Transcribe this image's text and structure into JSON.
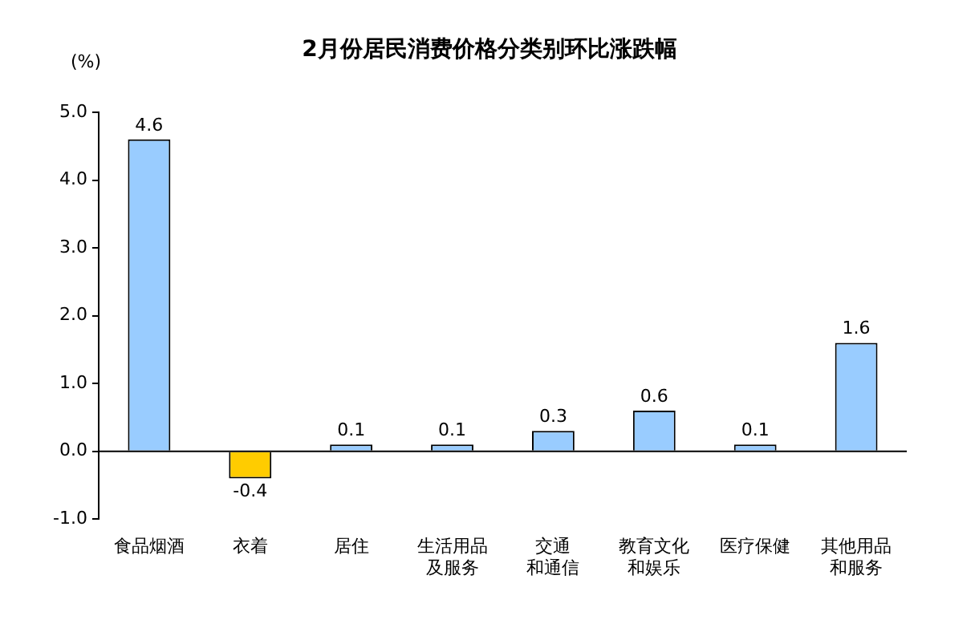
{
  "chart_data": {
    "type": "bar",
    "title": "2月份居民消费价格分类别环比涨跌幅",
    "ylabel": "(%)",
    "categories": [
      "食品烟酒",
      "衣着",
      "居住",
      "生活用品及服务",
      "交通和通信",
      "教育文化和娱乐",
      "医疗保健",
      "其他用品和服务"
    ],
    "values": [
      4.6,
      -0.4,
      0.1,
      0.1,
      0.3,
      0.6,
      0.1,
      1.6
    ],
    "colors": [
      "#99ccff",
      "#ffcc00",
      "#99ccff",
      "#99ccff",
      "#99ccff",
      "#99ccff",
      "#99ccff",
      "#99ccff"
    ],
    "ylim": [
      -1,
      5
    ],
    "yticks": [
      {
        "value": -1,
        "label": "-1.0"
      },
      {
        "value": 0,
        "label": "0.0"
      },
      {
        "value": 1,
        "label": "1.0"
      },
      {
        "value": 2,
        "label": "2.0"
      },
      {
        "value": 3,
        "label": "3.0"
      },
      {
        "value": 4,
        "label": "4.0"
      },
      {
        "value": 5,
        "label": "5.0"
      }
    ],
    "ref_lines": [
      {
        "axis": "y",
        "value": 0,
        "color": "#000000"
      }
    ],
    "data_labels": true,
    "legend": false,
    "grid": false
  }
}
